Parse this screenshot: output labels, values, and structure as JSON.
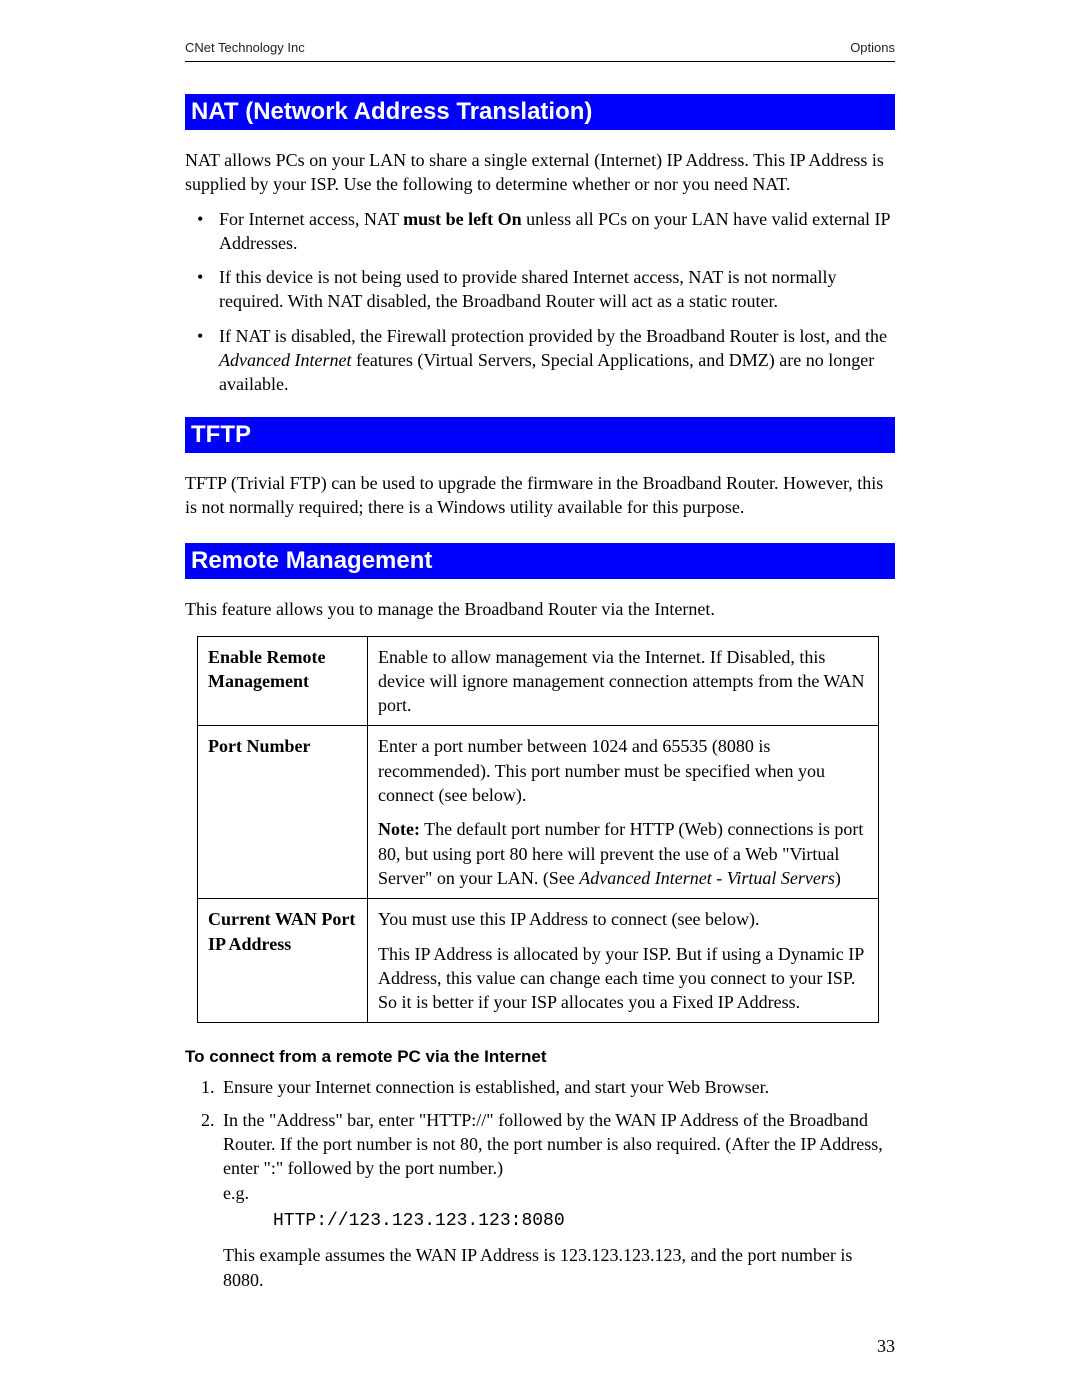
{
  "header": {
    "left": "CNet Technology Inc",
    "right": "Options"
  },
  "sections": {
    "nat": {
      "title": "NAT (Network Address Translation)",
      "intro": "NAT allows PCs on your LAN to share a single external (Internet) IP Address. This IP Address is supplied by your ISP. Use the following to determine whether or nor you need NAT.",
      "b1_pre": "For Internet access, NAT ",
      "b1_bold": "must be left On",
      "b1_post": " unless all PCs on your LAN have valid external IP Addresses.",
      "b2": "If this device is not being used to provide shared Internet access, NAT is not normally required. With NAT disabled, the Broadband Router will act as a static router.",
      "b3_pre": "If NAT is disabled, the Firewall protection provided by the Broadband Router is lost, and the ",
      "b3_italic": "Advanced Internet",
      "b3_post": " features (Virtual Servers, Special Applications, and DMZ) are no longer available."
    },
    "tftp": {
      "title": "TFTP",
      "body": "TFTP (Trivial FTP) can be used to upgrade the firmware in the Broadband Router. However, this is not normally required; there is a Windows utility available for this purpose."
    },
    "remote": {
      "title": "Remote Management",
      "intro": "This feature allows you to manage the Broadband Router via the Internet.",
      "row1_label": "Enable Remote Management",
      "row1_body": "Enable to allow management via the Internet. If Disabled, this device will ignore management connection attempts from the WAN port.",
      "row2_label": "Port Number",
      "row2_p1": "Enter a port number between 1024 and 65535 (8080 is recommended). This port number must be specified when you connect (see below).",
      "row2_note_label": "Note:",
      "row2_p2_a": " The default port number for HTTP (Web) connections is port 80, but using port 80 here will prevent the use of a Web \"Virtual Server\" on your LAN. (See ",
      "row2_p2_italic": "Advanced Internet - Virtual Servers",
      "row2_p2_b": ")",
      "row3_label": "Current WAN Port IP Address",
      "row3_p1": "You must use this IP Address to connect (see below).",
      "row3_p2": "This IP Address is allocated by your ISP. But if using a Dynamic IP Address, this value can change each time you connect to your ISP. So it is better if your ISP allocates you a Fixed IP Address.",
      "subheading": "To connect from a remote PC via the Internet",
      "step1": "Ensure your Internet connection is established, and start your Web Browser.",
      "step2": "In the \"Address\" bar, enter \"HTTP://\" followed by the WAN IP Address of the Broadband Router. If the port number is not 80, the port number is also required. (After the IP Address, enter \":\" followed by the port number.)",
      "eg_label": "e.g.",
      "code": "HTTP://123.123.123.123:8080",
      "example_note": "This example assumes the WAN IP Address is 123.123.123.123, and the port number is 8080."
    }
  },
  "page_number": "33",
  "colors": {
    "heading_bg": "#0000ff",
    "heading_fg": "#ffffff",
    "text": "#000000"
  }
}
